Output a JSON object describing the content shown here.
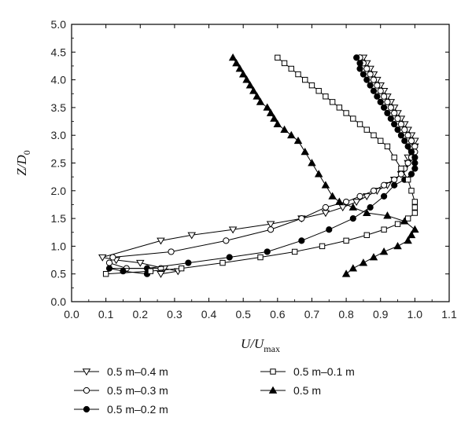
{
  "chart_data": {
    "type": "line",
    "xlabel": "U/U",
    "xlabel_sub": "max",
    "ylabel": "Z/D",
    "ylabel_sub": "0",
    "xlim": [
      0.0,
      1.1
    ],
    "ylim": [
      0.0,
      5.0
    ],
    "xticks": [
      "0.0",
      "0.1",
      "0.2",
      "0.3",
      "0.4",
      "0.5",
      "0.6",
      "0.7",
      "0.8",
      "0.9",
      "1.0",
      "1.1"
    ],
    "yticks": [
      "0.0",
      "0.5",
      "1.0",
      "1.5",
      "2.0",
      "2.5",
      "3.0",
      "3.5",
      "4.0",
      "4.5",
      "5.0"
    ],
    "legend_position": "bottom",
    "series": [
      {
        "name": "0.5 m–0.4 m",
        "marker": "triangle-down-open",
        "x": [
          0.85,
          0.86,
          0.87,
          0.88,
          0.89,
          0.9,
          0.91,
          0.92,
          0.93,
          0.94,
          0.95,
          0.96,
          0.97,
          0.98,
          0.99,
          1.0,
          1.0,
          0.99,
          0.98,
          0.98,
          0.97,
          0.96,
          0.94,
          0.92,
          0.89,
          0.86,
          0.83,
          0.79,
          0.74,
          0.67,
          0.58,
          0.47,
          0.35,
          0.26,
          0.09,
          0.13,
          0.2,
          0.27,
          0.31,
          0.26
        ],
        "y": [
          4.4,
          4.3,
          4.2,
          4.1,
          4.0,
          3.9,
          3.8,
          3.7,
          3.6,
          3.5,
          3.4,
          3.3,
          3.2,
          3.1,
          3.0,
          2.9,
          2.8,
          2.7,
          2.6,
          2.5,
          2.4,
          2.3,
          2.2,
          2.1,
          2.0,
          1.9,
          1.8,
          1.7,
          1.6,
          1.5,
          1.4,
          1.3,
          1.2,
          1.1,
          0.8,
          0.75,
          0.7,
          0.6,
          0.55,
          0.5
        ]
      },
      {
        "name": "0.5 m–0.3 m",
        "marker": "circle-open",
        "x": [
          0.84,
          0.85,
          0.86,
          0.87,
          0.88,
          0.89,
          0.9,
          0.91,
          0.92,
          0.93,
          0.94,
          0.95,
          0.96,
          0.97,
          0.98,
          0.99,
          1.0,
          1.0,
          0.99,
          0.98,
          0.97,
          0.96,
          0.94,
          0.91,
          0.88,
          0.84,
          0.8,
          0.74,
          0.67,
          0.58,
          0.45,
          0.29,
          0.12,
          0.11,
          0.16,
          0.26
        ],
        "y": [
          4.4,
          4.3,
          4.2,
          4.1,
          4.0,
          3.9,
          3.8,
          3.7,
          3.6,
          3.5,
          3.4,
          3.3,
          3.2,
          3.1,
          3.0,
          2.9,
          2.8,
          2.7,
          2.6,
          2.5,
          2.4,
          2.3,
          2.2,
          2.1,
          2.0,
          1.9,
          1.8,
          1.7,
          1.5,
          1.3,
          1.1,
          0.9,
          0.8,
          0.7,
          0.6,
          0.6
        ]
      },
      {
        "name": "0.5 m–0.2 m",
        "marker": "circle-filled",
        "x": [
          0.83,
          0.84,
          0.84,
          0.85,
          0.86,
          0.87,
          0.88,
          0.89,
          0.9,
          0.91,
          0.92,
          0.93,
          0.94,
          0.95,
          0.96,
          0.97,
          0.98,
          0.99,
          1.0,
          1.0,
          1.0,
          0.99,
          0.97,
          0.94,
          0.91,
          0.87,
          0.82,
          0.75,
          0.67,
          0.57,
          0.46,
          0.34,
          0.22,
          0.11,
          0.15,
          0.22
        ],
        "y": [
          4.4,
          4.3,
          4.2,
          4.1,
          4.0,
          3.9,
          3.8,
          3.7,
          3.6,
          3.5,
          3.4,
          3.3,
          3.2,
          3.1,
          3.0,
          2.9,
          2.8,
          2.7,
          2.6,
          2.5,
          2.4,
          2.3,
          2.2,
          2.1,
          1.9,
          1.7,
          1.5,
          1.3,
          1.1,
          0.9,
          0.8,
          0.7,
          0.6,
          0.6,
          0.55,
          0.5
        ]
      },
      {
        "name": "0.5 m–0.1 m",
        "marker": "square-open",
        "x": [
          0.6,
          0.62,
          0.64,
          0.66,
          0.68,
          0.7,
          0.72,
          0.74,
          0.76,
          0.78,
          0.8,
          0.82,
          0.84,
          0.86,
          0.88,
          0.9,
          0.92,
          0.94,
          0.96,
          0.98,
          0.99,
          1.0,
          1.0,
          1.0,
          0.98,
          0.95,
          0.91,
          0.86,
          0.8,
          0.73,
          0.65,
          0.55,
          0.44,
          0.32,
          0.23,
          0.1
        ],
        "y": [
          4.4,
          4.3,
          4.2,
          4.1,
          4.0,
          3.9,
          3.8,
          3.7,
          3.6,
          3.5,
          3.4,
          3.3,
          3.2,
          3.1,
          3.0,
          2.9,
          2.8,
          2.6,
          2.4,
          2.2,
          2.0,
          1.8,
          1.7,
          1.6,
          1.5,
          1.4,
          1.3,
          1.2,
          1.1,
          1.0,
          0.9,
          0.8,
          0.7,
          0.6,
          0.55,
          0.5
        ]
      },
      {
        "name": "0.5 m",
        "marker": "triangle-up-filled",
        "x": [
          0.47,
          0.48,
          0.49,
          0.5,
          0.51,
          0.52,
          0.53,
          0.54,
          0.55,
          0.57,
          0.58,
          0.59,
          0.6,
          0.62,
          0.64,
          0.66,
          0.68,
          0.7,
          0.72,
          0.74,
          0.76,
          0.78,
          0.82,
          0.86,
          0.92,
          0.97,
          1.0,
          0.99,
          0.98,
          0.95,
          0.91,
          0.88,
          0.85,
          0.82,
          0.8
        ],
        "y": [
          4.4,
          4.3,
          4.2,
          4.1,
          4.0,
          3.9,
          3.8,
          3.7,
          3.6,
          3.5,
          3.4,
          3.3,
          3.2,
          3.1,
          3.0,
          2.9,
          2.7,
          2.5,
          2.3,
          2.1,
          1.9,
          1.8,
          1.7,
          1.6,
          1.55,
          1.45,
          1.3,
          1.2,
          1.1,
          1.0,
          0.9,
          0.8,
          0.7,
          0.6,
          0.5
        ]
      }
    ]
  }
}
